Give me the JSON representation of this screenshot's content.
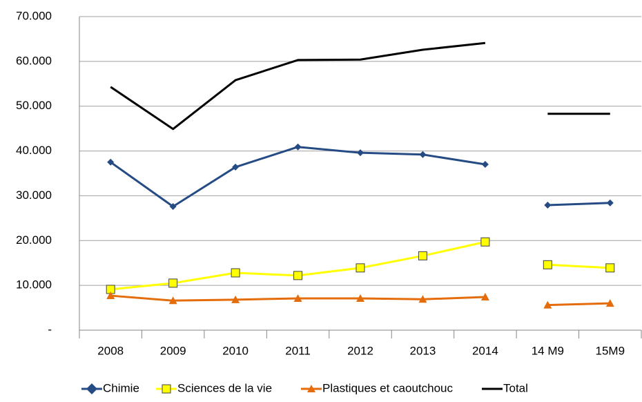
{
  "chart_data": {
    "type": "line",
    "categories": [
      "2008",
      "2009",
      "2010",
      "2011",
      "2012",
      "2013",
      "2014",
      "14 M9",
      "15M9"
    ],
    "series_breaks": [
      6
    ],
    "series": [
      {
        "name": "Chimie",
        "color": "#254b84",
        "marker": "diamond",
        "values": [
          37500,
          27600,
          36400,
          40900,
          39600,
          39200,
          37000,
          27900,
          28400
        ]
      },
      {
        "name": "Sciences de la vie",
        "color": "#ffff00",
        "marker": "square",
        "values": [
          9100,
          10500,
          12800,
          12200,
          13900,
          16600,
          19700,
          14600,
          13900
        ]
      },
      {
        "name": "Plastiques et caoutchouc",
        "color": "#e46c0a",
        "marker": "triangle",
        "values": [
          7700,
          6600,
          6800,
          7100,
          7100,
          6900,
          7400,
          5600,
          6000
        ]
      },
      {
        "name": "Total",
        "color": "#000000",
        "marker": "none",
        "values": [
          54300,
          44900,
          55800,
          60300,
          60400,
          62600,
          64100,
          48300,
          48300
        ]
      }
    ],
    "ylim": [
      0,
      70000
    ],
    "yticks": [
      {
        "value": 0,
        "label": "-"
      },
      {
        "value": 10000,
        "label": "10.000"
      },
      {
        "value": 20000,
        "label": "20.000"
      },
      {
        "value": 30000,
        "label": "30.000"
      },
      {
        "value": 40000,
        "label": "40.000"
      },
      {
        "value": 50000,
        "label": "50.000"
      },
      {
        "value": 60000,
        "label": "60.000"
      },
      {
        "value": 70000,
        "label": "70.000"
      }
    ],
    "grid": true,
    "legend": "bottom"
  }
}
